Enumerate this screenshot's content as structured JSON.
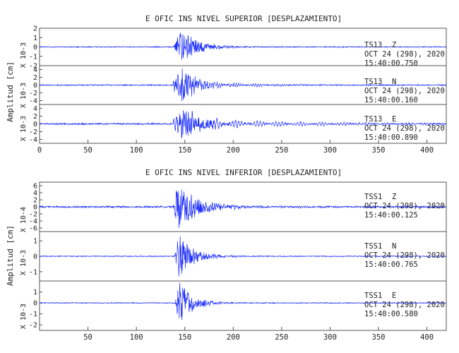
{
  "chart_data": [
    {
      "type": "line",
      "title": "E OFIC INS NIVEL SUPERIOR [DESPLAZAMIENTO]",
      "ylabel": "Amplitud [cm]",
      "xlim": [
        0,
        420
      ],
      "x_ticks": [
        0,
        50,
        100,
        150,
        200,
        250,
        300,
        350,
        400
      ],
      "grid": false,
      "trace_color": "#1a2bff",
      "panels": [
        {
          "name": "TS13 Z",
          "station": "TS13",
          "component": "Z",
          "date": "OCT 24 (298), 2020",
          "time": "15:40:00.750",
          "scale_label": "X 10-3",
          "ylim": [
            -2,
            2
          ],
          "y_ticks": [
            "2",
            "1",
            "0",
            "-1",
            "-2"
          ],
          "onset_s": 138,
          "peak_s": 146,
          "peak_amp": 1.9,
          "noise_amp": 0.05,
          "decay_s": 18,
          "coda_amp": 0.15,
          "coda_period_s": 3,
          "coda_decay_s": 60
        },
        {
          "name": "TS13 N",
          "station": "TS13",
          "component": "N",
          "date": "OCT 24 (298), 2020",
          "time": "15:40:00.160",
          "scale_label": "X 10-3",
          "ylim": [
            -5,
            5
          ],
          "y_ticks": [
            "4",
            "2",
            "0",
            "-2",
            "-4"
          ],
          "onset_s": 138,
          "peak_s": 147,
          "peak_amp": 4.6,
          "noise_amp": 0.15,
          "decay_s": 16,
          "coda_amp": 1.2,
          "coda_period_s": 2.5,
          "coda_decay_s": 70
        },
        {
          "name": "TS13 E",
          "station": "TS13",
          "component": "E",
          "date": "OCT 24 (298), 2020",
          "time": "15:40:00.890",
          "scale_label": "X 10-3",
          "ylim": [
            -5,
            5
          ],
          "y_ticks": [
            "4",
            "2",
            "0",
            "-2",
            "-4"
          ],
          "onset_s": 138,
          "peak_s": 148,
          "peak_amp": 4.0,
          "noise_amp": 0.2,
          "decay_s": 20,
          "coda_amp": 1.4,
          "coda_period_s": 3.2,
          "coda_decay_s": 130
        }
      ]
    },
    {
      "type": "line",
      "title": "E OFIC INS NIVEL INFERIOR [DESPLAZAMIENTO]",
      "ylabel": "Amplitud [cm]",
      "xlim": [
        0,
        420
      ],
      "x_ticks": [
        50,
        100,
        150,
        200,
        250,
        300,
        350,
        400
      ],
      "grid": false,
      "trace_color": "#1a2bff",
      "panels": [
        {
          "name": "TSS1 Z",
          "station": "TSS1",
          "component": "Z",
          "date": "OCT 24 (298), 2020",
          "time": "15:40:00.125",
          "scale_label": "X 10-4",
          "ylim": [
            -7,
            7
          ],
          "y_ticks": [
            "6",
            "4",
            "2",
            "0",
            "-2",
            "-4",
            "-6"
          ],
          "onset_s": 138,
          "peak_s": 142,
          "peak_amp": 6.5,
          "noise_amp": 0.25,
          "decay_s": 22,
          "coda_amp": 0.6,
          "coda_period_s": 2,
          "coda_decay_s": 80
        },
        {
          "name": "TSS1 N",
          "station": "TSS1",
          "component": "N",
          "date": "OCT 24 (298), 2020",
          "time": "15:40:00.765",
          "scale_label": "X 10-3",
          "ylim": [
            -1.6,
            1.6
          ],
          "y_ticks": [
            "1",
            "0",
            "-1"
          ],
          "onset_s": 139,
          "peak_s": 144,
          "peak_amp": 1.5,
          "noise_amp": 0.03,
          "decay_s": 15,
          "coda_amp": 0.1,
          "coda_period_s": 2,
          "coda_decay_s": 60
        },
        {
          "name": "TSS1 E",
          "station": "TSS1",
          "component": "E",
          "date": "OCT 24 (298), 2020",
          "time": "15:40:00.580",
          "scale_label": "X 10-3",
          "ylim": [
            -2.5,
            2
          ],
          "y_ticks": [
            "1",
            "0",
            "-1",
            "-2"
          ],
          "onset_s": 140,
          "peak_s": 144,
          "peak_amp": 2.0,
          "noise_amp": 0.04,
          "decay_s": 14,
          "coda_amp": 0.1,
          "coda_period_s": 2,
          "coda_decay_s": 60
        }
      ]
    }
  ]
}
